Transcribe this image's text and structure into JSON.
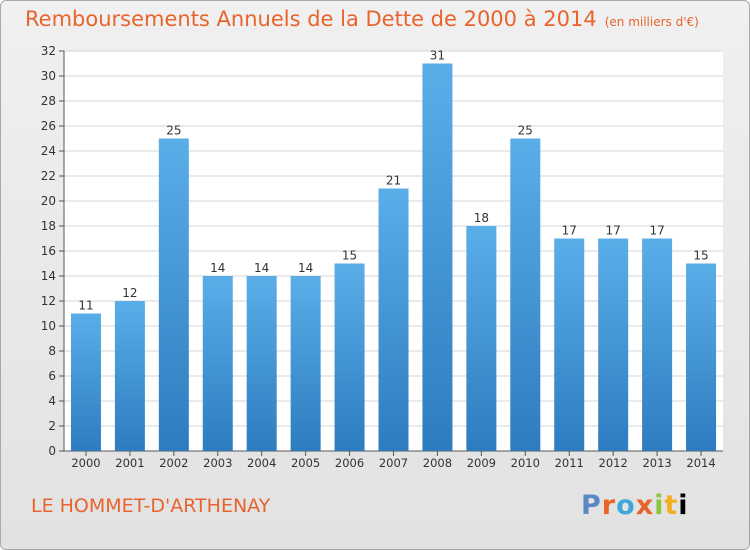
{
  "header": {
    "title": "Remboursements Annuels de la Dette de 2000 à 2014",
    "unit": "(en milliers d'€)"
  },
  "footer": {
    "commune": "LE HOMMET-D'ARTHENAY",
    "logo_text": "Proxiti"
  },
  "colors": {
    "title": "#e8642c",
    "bar_top": "#5aaee8",
    "bar_bottom": "#2e7cc0"
  },
  "chart_data": {
    "type": "bar",
    "title": "Remboursements Annuels de la Dette de 2000 à 2014",
    "categories": [
      "2000",
      "2001",
      "2002",
      "2003",
      "2004",
      "2005",
      "2006",
      "2007",
      "2008",
      "2009",
      "2010",
      "2011",
      "2012",
      "2013",
      "2014"
    ],
    "values": [
      11,
      12,
      25,
      14,
      14,
      14,
      15,
      21,
      31,
      18,
      25,
      17,
      17,
      17,
      15
    ],
    "ylim": [
      0,
      32
    ],
    "yticks": [
      0,
      2,
      4,
      6,
      8,
      10,
      12,
      14,
      16,
      18,
      20,
      22,
      24,
      26,
      28,
      30,
      32
    ],
    "grid": true,
    "data_labels": true
  }
}
